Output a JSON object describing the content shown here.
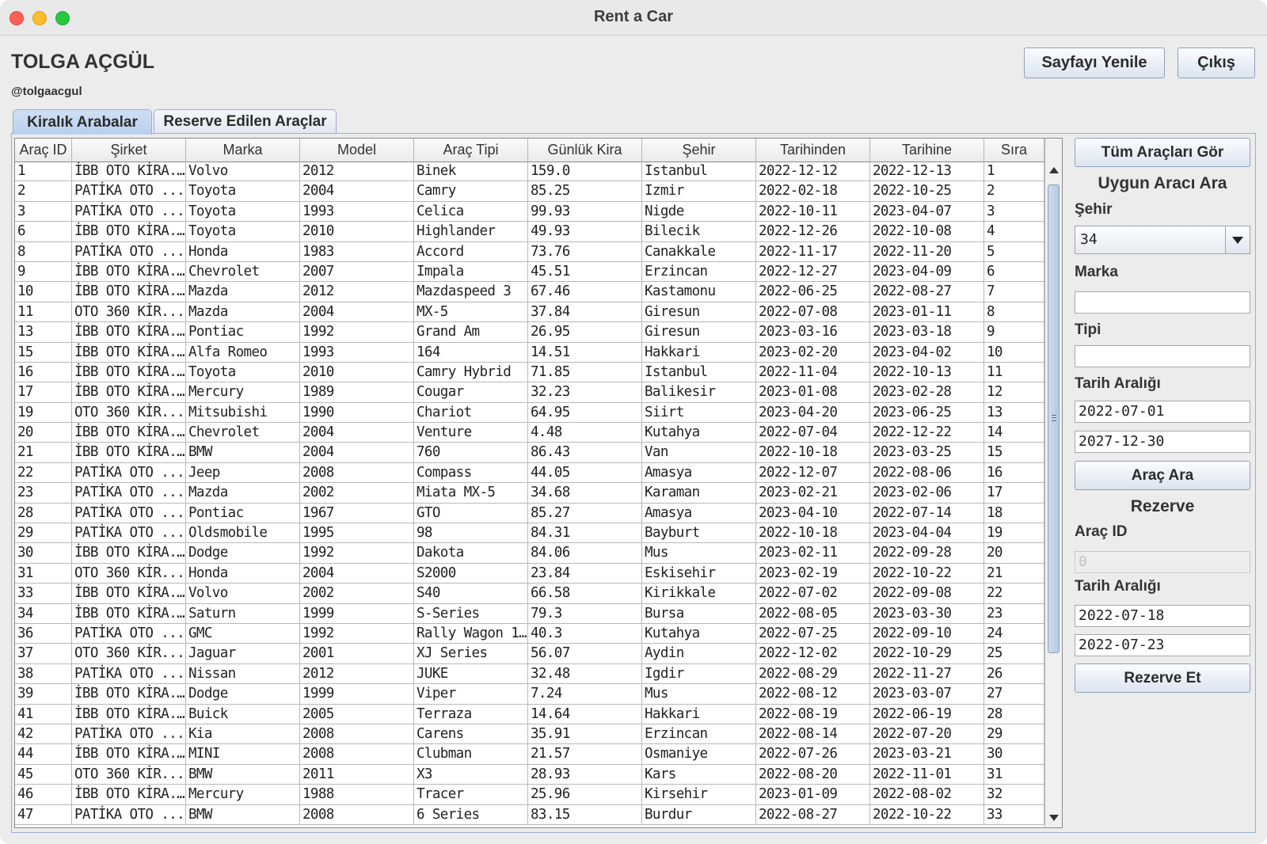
{
  "window": {
    "title": "Rent a Car"
  },
  "user": {
    "name": "TOLGA AÇGÜL",
    "handle": "@tolgaacgul"
  },
  "header": {
    "refresh_label": "Sayfayı Yenile",
    "exit_label": "Çıkış"
  },
  "tabs": [
    {
      "label": "Kiralık Arabalar",
      "active": true
    },
    {
      "label": "Reserve Edilen Araçlar",
      "active": false
    }
  ],
  "table": {
    "columns": [
      "Araç ID",
      "Şirket",
      "Marka",
      "Model",
      "Araç Tipi",
      "Günlük Kira",
      "Şehir",
      "Tarihinden",
      "Tarihine",
      "Sıra"
    ],
    "rows": [
      [
        "1",
        "İBB OTO KİRA...",
        "Volvo",
        "2012",
        "Binek",
        "159.0",
        "Istanbul",
        "2022-12-12",
        "2022-12-13",
        "1"
      ],
      [
        "2",
        "PATİKA OTO ...",
        "Toyota",
        "2004",
        "Camry",
        "85.25",
        "Izmir",
        "2022-02-18",
        "2022-10-25",
        "2"
      ],
      [
        "3",
        "PATİKA OTO ...",
        "Toyota",
        "1993",
        "Celica",
        "99.93",
        "Nigde",
        "2022-10-11",
        "2023-04-07",
        "3"
      ],
      [
        "6",
        "İBB OTO KİRA...",
        "Toyota",
        "2010",
        "Highlander",
        "49.93",
        "Bilecik",
        "2022-12-26",
        "2022-10-08",
        "4"
      ],
      [
        "8",
        "PATİKA OTO ...",
        "Honda",
        "1983",
        "Accord",
        "73.76",
        "Canakkale",
        "2022-11-17",
        "2022-11-20",
        "5"
      ],
      [
        "9",
        "İBB OTO KİRA...",
        "Chevrolet",
        "2007",
        "Impala",
        "45.51",
        "Erzincan",
        "2022-12-27",
        "2023-04-09",
        "6"
      ],
      [
        "10",
        "İBB OTO KİRA...",
        "Mazda",
        "2012",
        "Mazdaspeed 3",
        "67.46",
        "Kastamonu",
        "2022-06-25",
        "2022-08-27",
        "7"
      ],
      [
        "11",
        "OTO 360 KİR...",
        "Mazda",
        "2004",
        "MX-5",
        "37.84",
        "Giresun",
        "2022-07-08",
        "2023-01-11",
        "8"
      ],
      [
        "13",
        "İBB OTO KİRA...",
        "Pontiac",
        "1992",
        "Grand Am",
        "26.95",
        "Giresun",
        "2023-03-16",
        "2023-03-18",
        "9"
      ],
      [
        "15",
        "İBB OTO KİRA...",
        "Alfa Romeo",
        "1993",
        "164",
        "14.51",
        "Hakkari",
        "2023-02-20",
        "2023-04-02",
        "10"
      ],
      [
        "16",
        "İBB OTO KİRA...",
        "Toyota",
        "2010",
        "Camry Hybrid",
        "71.85",
        "Istanbul",
        "2022-11-04",
        "2022-10-13",
        "11"
      ],
      [
        "17",
        "İBB OTO KİRA...",
        "Mercury",
        "1989",
        "Cougar",
        "32.23",
        "Balikesir",
        "2023-01-08",
        "2023-02-28",
        "12"
      ],
      [
        "19",
        "OTO 360 KİR...",
        "Mitsubishi",
        "1990",
        "Chariot",
        "64.95",
        "Siirt",
        "2023-04-20",
        "2023-06-25",
        "13"
      ],
      [
        "20",
        "İBB OTO KİRA...",
        "Chevrolet",
        "2004",
        "Venture",
        "4.48",
        "Kutahya",
        "2022-07-04",
        "2022-12-22",
        "14"
      ],
      [
        "21",
        "İBB OTO KİRA...",
        "BMW",
        "2004",
        "760",
        "86.43",
        "Van",
        "2022-10-18",
        "2023-03-25",
        "15"
      ],
      [
        "22",
        "PATİKA OTO ...",
        "Jeep",
        "2008",
        "Compass",
        "44.05",
        "Amasya",
        "2022-12-07",
        "2022-08-06",
        "16"
      ],
      [
        "23",
        "PATİKA OTO ...",
        "Mazda",
        "2002",
        "Miata MX-5",
        "34.68",
        "Karaman",
        "2023-02-21",
        "2023-02-06",
        "17"
      ],
      [
        "28",
        "PATİKA OTO ...",
        "Pontiac",
        "1967",
        "GTO",
        "85.27",
        "Amasya",
        "2023-04-10",
        "2022-07-14",
        "18"
      ],
      [
        "29",
        "PATİKA OTO ...",
        "Oldsmobile",
        "1995",
        "98",
        "84.31",
        "Bayburt",
        "2022-10-18",
        "2023-04-04",
        "19"
      ],
      [
        "30",
        "İBB OTO KİRA...",
        "Dodge",
        "1992",
        "Dakota",
        "84.06",
        "Mus",
        "2023-02-11",
        "2022-09-28",
        "20"
      ],
      [
        "31",
        "OTO 360 KİR...",
        "Honda",
        "2004",
        "S2000",
        "23.84",
        "Eskisehir",
        "2023-02-19",
        "2022-10-22",
        "21"
      ],
      [
        "33",
        "İBB OTO KİRA...",
        "Volvo",
        "2002",
        "S40",
        "66.58",
        "Kirikkale",
        "2022-07-02",
        "2022-09-08",
        "22"
      ],
      [
        "34",
        "İBB OTO KİRA...",
        "Saturn",
        "1999",
        "S-Series",
        "79.3",
        "Bursa",
        "2022-08-05",
        "2023-03-30",
        "23"
      ],
      [
        "36",
        "PATİKA OTO ...",
        "GMC",
        "1992",
        "Rally Wagon 1...",
        "40.3",
        "Kutahya",
        "2022-07-25",
        "2022-09-10",
        "24"
      ],
      [
        "37",
        "OTO 360 KİR...",
        "Jaguar",
        "2001",
        "XJ Series",
        "56.07",
        "Aydin",
        "2022-12-02",
        "2022-10-29",
        "25"
      ],
      [
        "38",
        "PATİKA OTO ...",
        "Nissan",
        "2012",
        "JUKE",
        "32.48",
        "Igdir",
        "2022-08-29",
        "2022-11-27",
        "26"
      ],
      [
        "39",
        "İBB OTO KİRA...",
        "Dodge",
        "1999",
        "Viper",
        "7.24",
        "Mus",
        "2022-08-12",
        "2023-03-07",
        "27"
      ],
      [
        "41",
        "İBB OTO KİRA...",
        "Buick",
        "2005",
        "Terraza",
        "14.64",
        "Hakkari",
        "2022-08-19",
        "2022-06-19",
        "28"
      ],
      [
        "42",
        "PATİKA OTO ...",
        "Kia",
        "2008",
        "Carens",
        "35.91",
        "Erzincan",
        "2022-08-14",
        "2022-07-20",
        "29"
      ],
      [
        "44",
        "İBB OTO KİRA...",
        "MINI",
        "2008",
        "Clubman",
        "21.57",
        "Osmaniye",
        "2022-07-26",
        "2023-03-21",
        "30"
      ],
      [
        "45",
        "OTO 360 KİR...",
        "BMW",
        "2011",
        "X3",
        "28.93",
        "Kars",
        "2022-08-20",
        "2022-11-01",
        "31"
      ],
      [
        "46",
        "İBB OTO KİRA...",
        "Mercury",
        "1988",
        "Tracer",
        "25.96",
        "Kirsehir",
        "2023-01-09",
        "2022-08-02",
        "32"
      ],
      [
        "47",
        "PATİKA OTO ...",
        "BMW",
        "2008",
        "6 Series",
        "83.15",
        "Burdur",
        "2022-08-27",
        "2022-10-22",
        "33"
      ]
    ]
  },
  "sidebar": {
    "show_all_label": "Tüm Araçları Gör",
    "search_heading": "Uygun Aracı Ara",
    "city_label": "Şehir",
    "city_value": "34",
    "brand_label": "Marka",
    "brand_value": "",
    "type_label": "Tipi",
    "type_value": "",
    "date_range_label": "Tarih Aralığı",
    "date_from": "2022-07-01",
    "date_to": "2027-12-30",
    "search_button": "Araç Ara",
    "reserve_heading": "Rezerve",
    "car_id_label": "Araç ID",
    "car_id_value": "0",
    "reserve_date_label": "Tarih Aralığı",
    "reserve_from": "2022-07-18",
    "reserve_to": "2022-07-23",
    "reserve_button": "Rezerve Et"
  }
}
